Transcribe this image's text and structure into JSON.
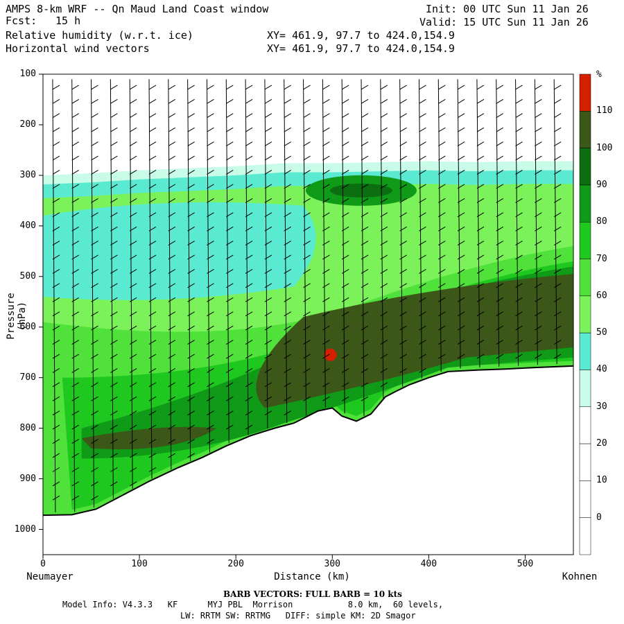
{
  "header": {
    "title": "AMPS 8-km WRF -- Qn Maud Land Coast window",
    "fcst_label": "Fcst:",
    "fcst_value": "15 h",
    "field1": "Relative humidity (w.r.t. ice)",
    "field2": "Horizontal wind vectors",
    "xy1": "XY= 461.9, 97.7 to 424.0,154.9",
    "xy2": "XY= 461.9, 97.7 to 424.0,154.9",
    "init": "Init: 00 UTC Sun 11 Jan 26",
    "valid": "Valid: 15 UTC Sun 11 Jan 26"
  },
  "footer": {
    "barb_note": "BARB VECTORS: FULL BARB = 10 kts",
    "model_info_1": "Model Info: V4.3.3   KF      MYJ PBL  Morrison           8.0 km,  60 levels,",
    "model_info_2": "LW: RRTM SW: RRTMG   DIFF: simple KM: 2D Smagor"
  },
  "chart_data": {
    "type": "heatmap",
    "title": "Relative humidity (w.r.t. ice) cross-section",
    "xlabel": "Distance (km)",
    "ylabel": "Pressure (hPa)",
    "xlim": [
      0,
      550
    ],
    "ylim": [
      1050,
      100
    ],
    "x_ticks": [
      "0",
      "100",
      "200",
      "300",
      "400",
      "500"
    ],
    "y_ticks": [
      "100",
      "200",
      "300",
      "400",
      "500",
      "600",
      "700",
      "800",
      "900",
      "1000"
    ],
    "x_start_label": "Neumayer",
    "x_end_label": "Kohnen",
    "colorbar": {
      "unit": "%",
      "levels": [
        "0",
        "10",
        "20",
        "30",
        "40",
        "50",
        "60",
        "70",
        "80",
        "90",
        "100",
        "110"
      ],
      "colors": [
        "#ffffff",
        "#ffffff",
        "#ffffff",
        "#ffffff",
        "#c8fce8",
        "#5aead2",
        "#7cf25a",
        "#50e23a",
        "#1fc81f",
        "#0f9a18",
        "#0b6e10",
        "#3c5818",
        "#d42000"
      ]
    },
    "terrain": {
      "x_km": [
        0,
        30,
        55,
        80,
        110,
        140,
        165,
        190,
        215,
        240,
        260,
        285,
        300,
        310,
        325,
        340,
        355,
        365,
        380,
        400,
        420,
        450,
        480,
        510,
        550
      ],
      "p_hpa": [
        972,
        971,
        960,
        935,
        905,
        878,
        858,
        835,
        815,
        800,
        790,
        766,
        760,
        776,
        786,
        772,
        738,
        728,
        714,
        700,
        688,
        685,
        683,
        680,
        677
      ]
    },
    "moist_top_hpa": [
      [
        0,
        300
      ],
      [
        50,
        296
      ],
      [
        100,
        290
      ],
      [
        150,
        286
      ],
      [
        200,
        282
      ],
      [
        250,
        276
      ],
      [
        300,
        276
      ],
      [
        350,
        274
      ],
      [
        400,
        272
      ],
      [
        450,
        274
      ],
      [
        500,
        272
      ],
      [
        550,
        272
      ]
    ]
  }
}
